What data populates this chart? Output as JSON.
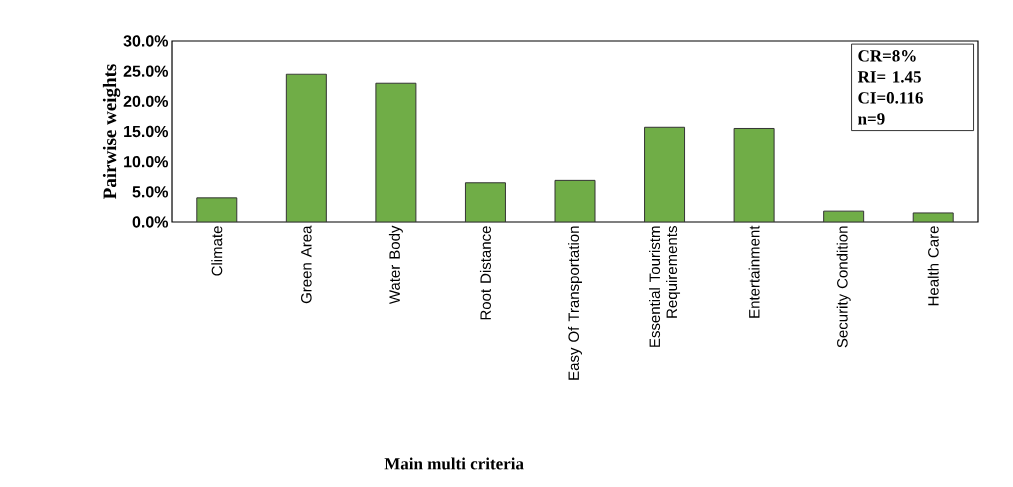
{
  "chart_data": {
    "type": "bar",
    "xlabel": "Main multi criteria",
    "ylabel": "Pairwise weights",
    "categories": [
      "Climate",
      "Green Area",
      "Water Body",
      "Root Distance",
      "Easy Of Transportation",
      "Essential Touristm Requirements",
      "Entertainment",
      "Security Condition",
      "Health Care"
    ],
    "values": [
      4.0,
      24.5,
      23.0,
      6.5,
      6.9,
      15.7,
      15.5,
      1.8,
      1.5
    ],
    "color": "#70ad47",
    "ylim": [
      0,
      30
    ],
    "yticks": [
      {
        "value": 0,
        "label": "0.0%"
      },
      {
        "value": 5,
        "label": "5.0%"
      },
      {
        "value": 10,
        "label": "10.0%"
      },
      {
        "value": 15,
        "label": "15.0%"
      },
      {
        "value": 20,
        "label": "20.0%"
      },
      {
        "value": 25,
        "label": "25.0%"
      },
      {
        "value": 30,
        "label": "30.0%"
      }
    ],
    "annotations": [
      "CR=8%",
      "RI= 1.45",
      "CI=0.116",
      "n=9"
    ]
  }
}
